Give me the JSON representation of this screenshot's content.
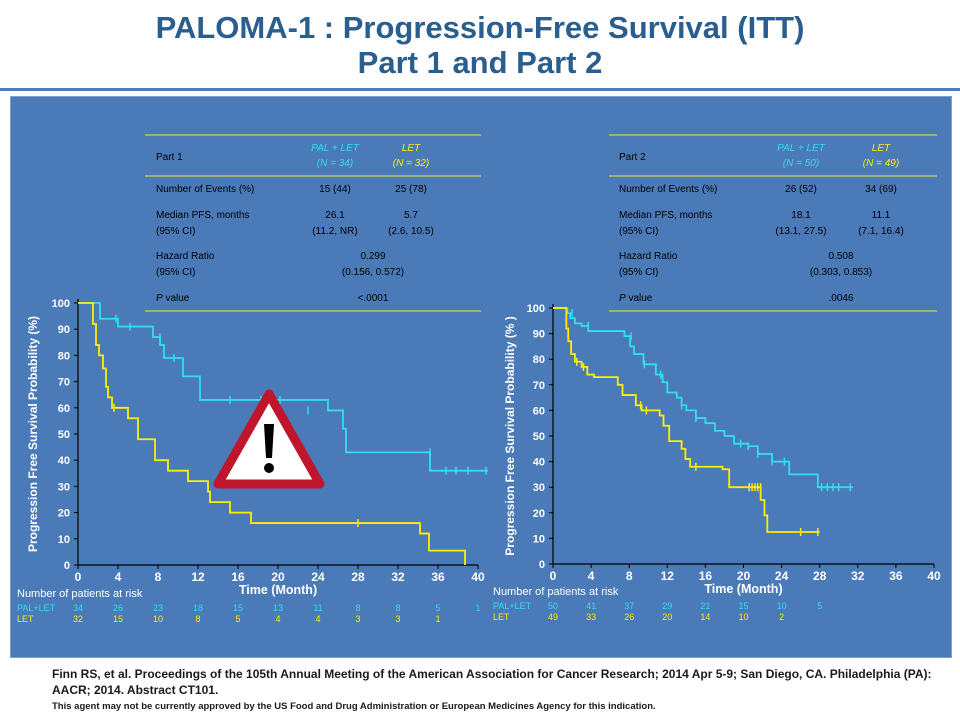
{
  "title": {
    "line1": "PALOMA-1 : Progression-Free Survival (ITT)",
    "line2": "Part 1 and Part 2"
  },
  "footer": {
    "citation": "Finn RS, et al. Proceedings of the 105th Annual Meeting of the American Association  for Cancer Research; 2014 Apr 5-9;  San Diego, CA. Philadelphia (PA): AACR;  2014.  Abstract  CT101.",
    "disclaimer": "This agent may not be currently approved by the US Food and Drug Administration or European Medicines Agency for this indication."
  },
  "colors": {
    "panel": "#4a7ab8",
    "pal_let": "#33ddee",
    "let": "#ffee00",
    "table_rule": "#b8c65a",
    "warning_border": "#c0162c"
  },
  "warning_icon": "warning-triangle-icon",
  "chart_data": [
    {
      "type": "line",
      "subtype": "kaplan-meier",
      "xlabel": "Time (Month)",
      "ylabel": "Progression Free Survival Probability (%)",
      "xlim": [
        0,
        40
      ],
      "ylim": [
        0,
        100
      ],
      "xticks": [
        0,
        4,
        8,
        12,
        16,
        20,
        24,
        28,
        32,
        36,
        40
      ],
      "yticks": [
        0,
        10,
        20,
        30,
        40,
        50,
        60,
        70,
        80,
        90,
        100
      ],
      "series": [
        {
          "name": "PAL+LET",
          "color": "#33ddee",
          "steps": [
            [
              0,
              100
            ],
            [
              2.2,
              94
            ],
            [
              4,
              91
            ],
            [
              7.5,
              87
            ],
            [
              8.2,
              84
            ],
            [
              8.6,
              79
            ],
            [
              10.5,
              72
            ],
            [
              12,
              72
            ],
            [
              12.2,
              63
            ],
            [
              25,
              59
            ],
            [
              26.5,
              52
            ],
            [
              26.8,
              43
            ],
            [
              35,
              43
            ],
            [
              35.2,
              36
            ],
            [
              41,
              36
            ]
          ],
          "censors": [
            [
              3.8,
              94
            ],
            [
              5.2,
              91
            ],
            [
              8.2,
              87
            ],
            [
              9.6,
              79
            ],
            [
              15.2,
              63
            ],
            [
              18.3,
              63
            ],
            [
              20.2,
              63
            ],
            [
              23,
              59
            ],
            [
              35.2,
              43
            ],
            [
              36.8,
              36
            ],
            [
              37.8,
              36
            ],
            [
              39,
              36
            ],
            [
              40.8,
              36
            ]
          ]
        },
        {
          "name": "LET",
          "color": "#ffee00",
          "steps": [
            [
              0,
              100
            ],
            [
              1.5,
              92
            ],
            [
              1.8,
              84
            ],
            [
              2.1,
              80
            ],
            [
              2.5,
              75
            ],
            [
              2.8,
              68
            ],
            [
              3,
              64
            ],
            [
              3.4,
              60
            ],
            [
              5,
              56
            ],
            [
              6,
              48
            ],
            [
              7.7,
              40
            ],
            [
              9,
              36
            ],
            [
              11,
              32
            ],
            [
              13,
              28
            ],
            [
              13.2,
              24
            ],
            [
              15.2,
              20
            ],
            [
              17.3,
              16
            ],
            [
              33.5,
              16
            ],
            [
              34.2,
              12
            ],
            [
              35.1,
              5.5
            ],
            [
              38.5,
              5.5
            ],
            [
              38.7,
              0
            ]
          ],
          "censors": [
            [
              3.6,
              60
            ],
            [
              28,
              16
            ]
          ]
        }
      ],
      "table": {
        "header": [
          "Part 1",
          "PAL + LET\n(N = 34)",
          "LET\n(N = 32)"
        ],
        "rows": [
          {
            "label": "Number of Events (%)",
            "pal": "15 (44)",
            "let": "25 (78)"
          },
          {
            "label": "Median PFS, months\n(95% CI)",
            "pal": "26.1\n(11.2, NR)",
            "let": "5.7\n(2.6, 10.5)"
          },
          {
            "label": "Hazard Ratio\n(95% CI)",
            "merged": "0.299\n(0.156, 0.572)"
          },
          {
            "label": "P value",
            "merged": "<.0001"
          }
        ]
      },
      "at_risk": {
        "title": "Number of patients at risk",
        "rows": [
          {
            "label": "PAL+LET",
            "values": [
              "34",
              "26",
              "23",
              "18",
              "15",
              "13",
              "11",
              "8",
              "8",
              "5",
              "1"
            ]
          },
          {
            "label": "LET",
            "values": [
              "32",
              "15",
              "10",
              "8",
              "5",
              "4",
              "4",
              "3",
              "3",
              "1",
              ""
            ]
          }
        ]
      }
    },
    {
      "type": "line",
      "subtype": "kaplan-meier",
      "xlabel": "Time (Month)",
      "ylabel": "Progression Free Survival Probability (% )",
      "xlim": [
        0,
        40
      ],
      "ylim": [
        0,
        100
      ],
      "xticks": [
        0,
        4,
        8,
        12,
        16,
        20,
        24,
        28,
        32,
        36,
        40
      ],
      "yticks": [
        0,
        10,
        20,
        30,
        40,
        50,
        60,
        70,
        80,
        90,
        100
      ],
      "series": [
        {
          "name": "PAL+LET",
          "color": "#33ddee",
          "steps": [
            [
              0,
              100
            ],
            [
              1.5,
              98
            ],
            [
              1.8,
              96
            ],
            [
              2.3,
              94
            ],
            [
              3,
              93
            ],
            [
              3.7,
              91
            ],
            [
              7.5,
              89
            ],
            [
              8.1,
              85
            ],
            [
              8.5,
              82
            ],
            [
              9.5,
              78
            ],
            [
              10.8,
              74
            ],
            [
              11.5,
              71
            ],
            [
              12,
              67
            ],
            [
              13,
              65
            ],
            [
              13.5,
              62
            ],
            [
              14,
              60
            ],
            [
              15,
              57
            ],
            [
              16,
              55
            ],
            [
              17,
              52
            ],
            [
              18,
              50
            ],
            [
              19,
              47
            ],
            [
              20.5,
              46
            ],
            [
              21.5,
              43
            ],
            [
              23,
              40
            ],
            [
              24.5,
              40
            ],
            [
              24.8,
              35
            ],
            [
              27.5,
              35
            ],
            [
              27.8,
              30
            ],
            [
              31.5,
              30
            ]
          ],
          "censors": [
            [
              2,
              98
            ],
            [
              3.7,
              93
            ],
            [
              8.2,
              89
            ],
            [
              9.6,
              78
            ],
            [
              11.3,
              74
            ],
            [
              13.5,
              62
            ],
            [
              15,
              57
            ],
            [
              19.7,
              47
            ],
            [
              20.5,
              46
            ],
            [
              21.5,
              43
            ],
            [
              23,
              40
            ],
            [
              24.3,
              40
            ],
            [
              28.2,
              30
            ],
            [
              28.8,
              30
            ],
            [
              29.4,
              30
            ],
            [
              30,
              30
            ],
            [
              31.2,
              30
            ]
          ]
        },
        {
          "name": "LET",
          "color": "#ffee00",
          "steps": [
            [
              0,
              100
            ],
            [
              1.4,
              92
            ],
            [
              1.6,
              87
            ],
            [
              1.9,
              82
            ],
            [
              2.3,
              79
            ],
            [
              3,
              77
            ],
            [
              3.6,
              74
            ],
            [
              4.3,
              73
            ],
            [
              6.8,
              70
            ],
            [
              7.3,
              66
            ],
            [
              8.7,
              62
            ],
            [
              9.3,
              60
            ],
            [
              11.2,
              58
            ],
            [
              11.6,
              54
            ],
            [
              12.2,
              48
            ],
            [
              13.5,
              45
            ],
            [
              13.9,
              41
            ],
            [
              14.4,
              38
            ],
            [
              17.8,
              37
            ],
            [
              18.5,
              30
            ],
            [
              21.5,
              30
            ],
            [
              21.8,
              25
            ],
            [
              22.2,
              19
            ],
            [
              22.5,
              12.5
            ],
            [
              28,
              12.5
            ]
          ],
          "censors": [
            [
              2.5,
              79
            ],
            [
              3.2,
              77
            ],
            [
              9.2,
              62
            ],
            [
              9.8,
              60
            ],
            [
              15,
              38
            ],
            [
              20.6,
              30
            ],
            [
              20.9,
              30
            ],
            [
              21.2,
              30
            ],
            [
              21.5,
              30
            ],
            [
              21.8,
              30
            ],
            [
              26,
              12.5
            ],
            [
              27.8,
              12.5
            ]
          ]
        }
      ],
      "table": {
        "header": [
          "Part 2",
          "PAL + LET\n(N = 50)",
          "LET\n(N = 49)"
        ],
        "rows": [
          {
            "label": "Number of Events (%)",
            "pal": "26 (52)",
            "let": "34 (69)"
          },
          {
            "label": "Median PFS, months\n(95% CI)",
            "pal": "18.1\n(13.1, 27.5)",
            "let": "11.1\n(7.1, 16.4)"
          },
          {
            "label": "Hazard Ratio\n(95% CI)",
            "merged": "0.508\n(0.303, 0.853)"
          },
          {
            "label": "P value",
            "merged": ".0046"
          }
        ]
      },
      "at_risk": {
        "title": "Number of patients at risk",
        "rows": [
          {
            "label": "PAL+LET",
            "values": [
              "50",
              "41",
              "37",
              "29",
              "21",
              "15",
              "10",
              "5",
              "",
              "",
              ""
            ]
          },
          {
            "label": "LET",
            "values": [
              "49",
              "33",
              "26",
              "20",
              "14",
              "10",
              "2",
              "",
              "",
              "",
              ""
            ]
          }
        ]
      }
    }
  ]
}
